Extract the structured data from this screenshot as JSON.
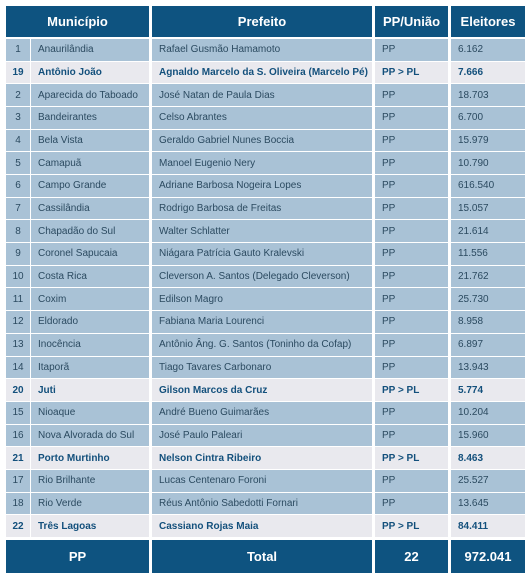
{
  "table": {
    "header": [
      "Município",
      "Prefeito",
      "PP/União",
      "Eleitores"
    ],
    "rows": [
      {
        "n": "1",
        "municipio": "Anaurilândia",
        "prefeito": "Rafael Gusmão Hamamoto",
        "partido": "PP",
        "eleitores": "6.162",
        "highlight": false
      },
      {
        "n": "19",
        "municipio": "Antônio João",
        "prefeito": "Agnaldo Marcelo da S. Oliveira (Marcelo Pé)",
        "partido": "PP > PL",
        "eleitores": "7.666",
        "highlight": true
      },
      {
        "n": "2",
        "municipio": "Aparecida do Taboado",
        "prefeito": "José Natan de Paula Dias",
        "partido": "PP",
        "eleitores": "18.703",
        "highlight": false
      },
      {
        "n": "3",
        "municipio": "Bandeirantes",
        "prefeito": "Celso Abrantes",
        "partido": "PP",
        "eleitores": "6.700",
        "highlight": false
      },
      {
        "n": "4",
        "municipio": "Bela Vista",
        "prefeito": "Geraldo Gabriel Nunes Boccia",
        "partido": "PP",
        "eleitores": "15.979",
        "highlight": false
      },
      {
        "n": "5",
        "municipio": "Camapuã",
        "prefeito": "Manoel Eugenio Nery",
        "partido": "PP",
        "eleitores": "10.790",
        "highlight": false
      },
      {
        "n": "6",
        "municipio": "Campo Grande",
        "prefeito": "Adriane Barbosa Nogeira Lopes",
        "partido": "PP",
        "eleitores": "616.540",
        "highlight": false
      },
      {
        "n": "7",
        "municipio": "Cassilândia",
        "prefeito": "Rodrigo Barbosa de Freitas",
        "partido": "PP",
        "eleitores": "15.057",
        "highlight": false
      },
      {
        "n": "8",
        "municipio": "Chapadão do Sul",
        "prefeito": "Walter Schlatter",
        "partido": "PP",
        "eleitores": "21.614",
        "highlight": false
      },
      {
        "n": "9",
        "municipio": "Coronel Sapucaia",
        "prefeito": "Niágara Patrícia Gauto Kralevski",
        "partido": "PP",
        "eleitores": "11.556",
        "highlight": false
      },
      {
        "n": "10",
        "municipio": "Costa Rica",
        "prefeito": "Cleverson A. Santos (Delegado Cleverson)",
        "partido": "PP",
        "eleitores": "21.762",
        "highlight": false
      },
      {
        "n": "11",
        "municipio": "Coxim",
        "prefeito": "Edilson Magro",
        "partido": "PP",
        "eleitores": "25.730",
        "highlight": false
      },
      {
        "n": "12",
        "municipio": "Eldorado",
        "prefeito": "Fabiana Maria Lourenci",
        "partido": "PP",
        "eleitores": "8.958",
        "highlight": false
      },
      {
        "n": "13",
        "municipio": "Inocência",
        "prefeito": "Antônio Âng. G. Santos (Toninho da Cofap)",
        "partido": "PP",
        "eleitores": "6.897",
        "highlight": false
      },
      {
        "n": "14",
        "municipio": "Itaporã",
        "prefeito": "Tiago Tavares Carbonaro",
        "partido": "PP",
        "eleitores": "13.943",
        "highlight": false
      },
      {
        "n": "20",
        "municipio": "Juti",
        "prefeito": "Gilson Marcos da Cruz",
        "partido": "PP > PL",
        "eleitores": "5.774",
        "highlight": true
      },
      {
        "n": "15",
        "municipio": "Nioaque",
        "prefeito": "André Bueno Guimarães",
        "partido": "PP",
        "eleitores": "10.204",
        "highlight": false
      },
      {
        "n": "16",
        "municipio": "Nova Alvorada do Sul",
        "prefeito": "José Paulo Paleari",
        "partido": "PP",
        "eleitores": "15.960",
        "highlight": false
      },
      {
        "n": "21",
        "municipio": "Porto Murtinho",
        "prefeito": "Nelson Cintra Ribeiro",
        "partido": "PP > PL",
        "eleitores": "8.463",
        "highlight": true
      },
      {
        "n": "17",
        "municipio": "Rio Brilhante",
        "prefeito": "Lucas Centenaro Foroni",
        "partido": "PP",
        "eleitores": "25.527",
        "highlight": false
      },
      {
        "n": "18",
        "municipio": "Rio Verde",
        "prefeito": "Réus Antônio Sabedotti Fornari",
        "partido": "PP",
        "eleitores": "13.645",
        "highlight": false
      },
      {
        "n": "22",
        "municipio": "Três Lagoas",
        "prefeito": "Cassiano Rojas Maia",
        "partido": "PP > PL",
        "eleitores": "84.411",
        "highlight": true
      }
    ],
    "total": [
      "PP",
      "Total",
      "22",
      "972.041"
    ]
  }
}
